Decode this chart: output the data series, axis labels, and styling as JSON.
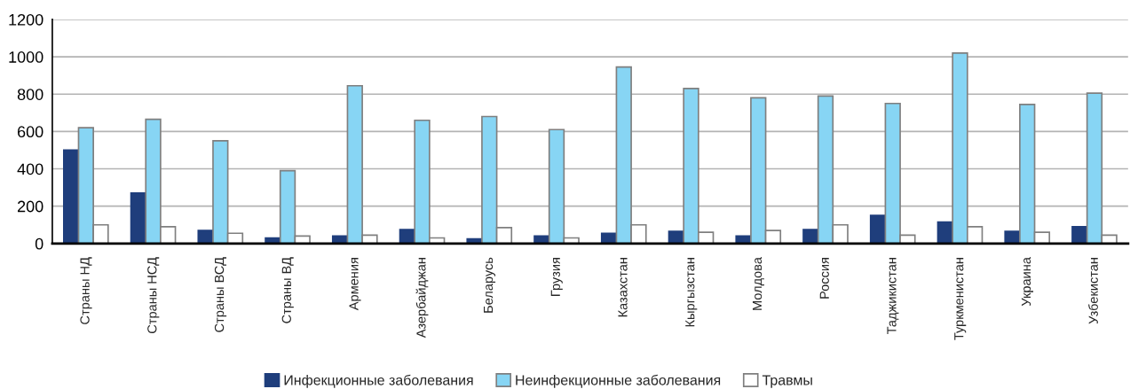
{
  "chart_data": {
    "type": "bar",
    "categories": [
      "Страны НД",
      "Страны НСД",
      "Страны ВСД",
      "Страны ВД",
      "Армения",
      "Азербайджан",
      "Беларусь",
      "Грузия",
      "Казахстан",
      "Кыргызстан",
      "Молдова",
      "Россия",
      "Таджикистан",
      "Туркменистан",
      "Украина",
      "Узбекистан"
    ],
    "series": [
      {
        "name": "Инфекционные заболевания",
        "color": "#1f3e7c",
        "values": [
          500,
          270,
          70,
          30,
          40,
          75,
          25,
          40,
          55,
          65,
          40,
          75,
          150,
          115,
          65,
          90
        ]
      },
      {
        "name": "Неинфекционные заболевания",
        "color": "#87d5f4",
        "values": [
          620,
          665,
          550,
          390,
          845,
          660,
          680,
          610,
          945,
          830,
          780,
          790,
          750,
          1020,
          745,
          805
        ]
      },
      {
        "name": "Травмы",
        "color": "#ffffff",
        "values": [
          100,
          90,
          55,
          40,
          45,
          30,
          85,
          30,
          100,
          60,
          70,
          100,
          45,
          90,
          60,
          45
        ]
      }
    ],
    "ylim": [
      0,
      1200
    ],
    "yticks": [
      0,
      200,
      400,
      600,
      800,
      1000,
      1200
    ],
    "grid": "y",
    "legend": "bottom"
  }
}
